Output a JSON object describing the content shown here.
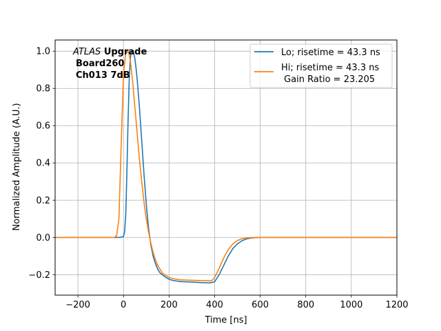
{
  "chart_data": {
    "type": "line",
    "xlabel": "Time [ns]",
    "ylabel": "Normalized Amplitude (A.U.)",
    "xlim": [
      -300,
      1200
    ],
    "ylim": [
      -0.31,
      1.06
    ],
    "xticks": [
      -200,
      0,
      200,
      400,
      600,
      800,
      1000,
      1200
    ],
    "yticks": [
      -0.2,
      0.0,
      0.2,
      0.4,
      0.6,
      0.8,
      1.0
    ],
    "xtick_labels": [
      "−200",
      "0",
      "200",
      "400",
      "600",
      "800",
      "1000",
      "1200"
    ],
    "ytick_labels": [
      "−0.2",
      "0.0",
      "0.2",
      "0.4",
      "0.6",
      "0.8",
      "1.0"
    ],
    "grid": true,
    "legend_position": "top-right",
    "annotation": {
      "italic": "ATLAS",
      "bold": "Upgrade",
      "line2": "Board260",
      "line3": "Ch013 7dB"
    },
    "series": [
      {
        "name": "Lo; risetime = 43.3 ns",
        "color": "#1f77b4",
        "x": [
          -300,
          -15,
          0,
          5,
          10,
          15,
          20,
          25,
          30,
          35,
          40,
          45,
          50,
          55,
          60,
          70,
          80,
          90,
          100,
          110,
          120,
          130,
          140,
          150,
          160,
          170,
          180,
          200,
          220,
          250,
          300,
          350,
          380,
          400,
          420,
          440,
          460,
          480,
          500,
          520,
          540,
          560,
          600,
          650,
          1200
        ],
        "y": [
          0.0,
          0.0,
          0.005,
          0.03,
          0.12,
          0.35,
          0.62,
          0.84,
          0.96,
          1.0,
          1.0,
          0.99,
          0.96,
          0.91,
          0.85,
          0.7,
          0.52,
          0.34,
          0.18,
          0.05,
          -0.04,
          -0.1,
          -0.14,
          -0.17,
          -0.19,
          -0.2,
          -0.21,
          -0.225,
          -0.232,
          -0.237,
          -0.24,
          -0.243,
          -0.244,
          -0.238,
          -0.2,
          -0.15,
          -0.1,
          -0.06,
          -0.035,
          -0.018,
          -0.008,
          -0.003,
          0.0,
          0.0,
          0.0
        ]
      },
      {
        "name": "Hi; risetime = 43.3 ns\n Gain Ratio = 23.205",
        "color": "#ff7f0e",
        "x": [
          -300,
          -40,
          -30,
          -20,
          -10,
          0,
          10,
          20,
          25,
          30,
          40,
          50,
          60,
          70,
          80,
          90,
          100,
          110,
          120,
          130,
          140,
          150,
          160,
          170,
          180,
          200,
          220,
          250,
          300,
          350,
          380,
          390,
          400,
          420,
          440,
          460,
          480,
          500,
          520,
          540,
          560,
          600,
          1200
        ],
        "y": [
          0.0,
          0.0,
          0.01,
          0.1,
          0.5,
          0.88,
          0.99,
          1.0,
          0.98,
          0.95,
          0.84,
          0.7,
          0.56,
          0.42,
          0.3,
          0.19,
          0.1,
          0.03,
          -0.03,
          -0.08,
          -0.12,
          -0.15,
          -0.17,
          -0.19,
          -0.2,
          -0.215,
          -0.222,
          -0.228,
          -0.23,
          -0.232,
          -0.233,
          -0.23,
          -0.215,
          -0.165,
          -0.11,
          -0.065,
          -0.035,
          -0.017,
          -0.007,
          -0.003,
          -0.001,
          0.0,
          0.0
        ]
      }
    ]
  }
}
